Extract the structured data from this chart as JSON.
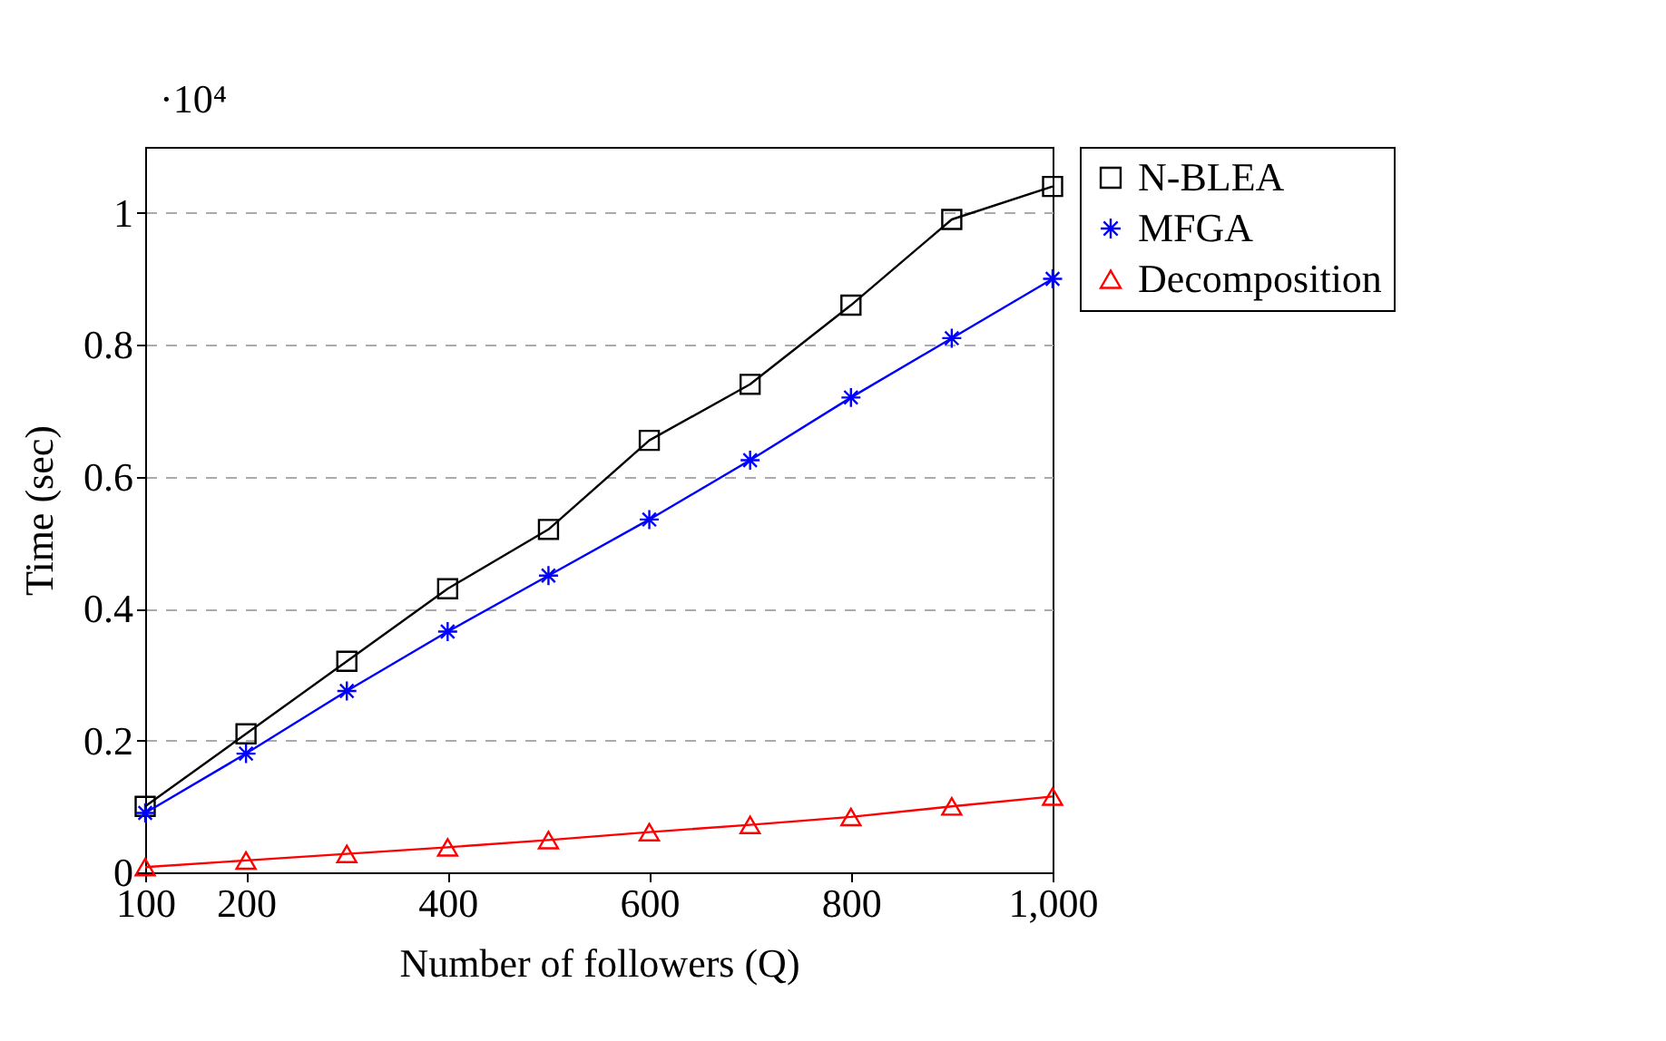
{
  "chart_data": {
    "type": "line",
    "xlabel": "Number of followers (Q)",
    "ylabel": "Time (sec)",
    "annotations": [
      "·10⁴"
    ],
    "x": [
      100,
      200,
      300,
      400,
      500,
      600,
      700,
      800,
      900,
      1000
    ],
    "xlim": [
      100,
      1000
    ],
    "xticks": [
      100,
      200,
      400,
      600,
      800,
      {
        "value": 1000,
        "label": "1,000"
      }
    ],
    "ylim": [
      0,
      1.1
    ],
    "yticks": [
      {
        "value": 0,
        "label": "0"
      },
      0.2,
      0.4,
      0.6,
      0.8,
      {
        "value": 1,
        "label": "1"
      }
    ],
    "grid": "y",
    "legend": "top right",
    "line_style": "solid",
    "series": [
      {
        "name": "N-BLEA",
        "color": "#000000",
        "marker": "square",
        "values": [
          0.1,
          0.21,
          0.32,
          0.43,
          0.52,
          0.655,
          0.74,
          0.86,
          0.99,
          1.04
        ]
      },
      {
        "name": "MFGA",
        "color": "#0000ff",
        "marker": "cross",
        "values": [
          0.09,
          0.18,
          0.275,
          0.365,
          0.45,
          0.535,
          0.625,
          0.72,
          0.81,
          0.9
        ]
      },
      {
        "name": "Decomposition",
        "color": "#ff0000",
        "marker": "triangle",
        "values": [
          0.008,
          0.018,
          0.028,
          0.038,
          0.049,
          0.061,
          0.072,
          0.084,
          0.1,
          0.115
        ]
      }
    ]
  }
}
